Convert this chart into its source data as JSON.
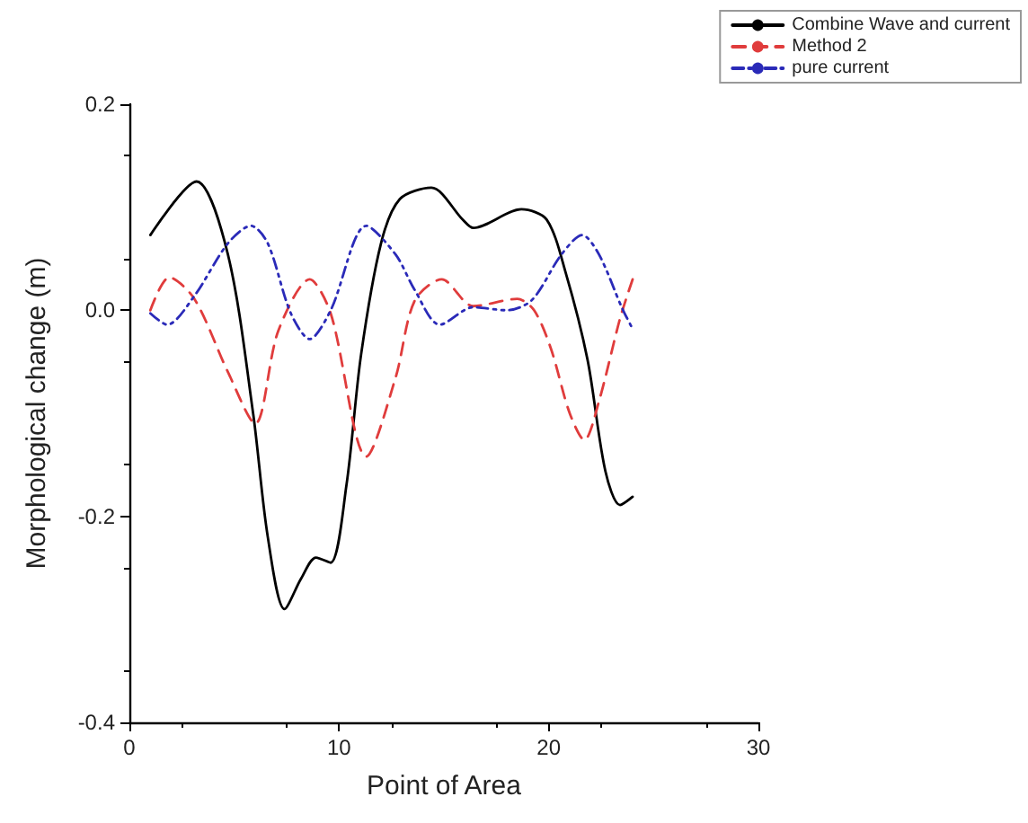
{
  "chart_data": {
    "type": "line",
    "xlabel": "Point of Area",
    "ylabel": "Morphological change (m)",
    "xlim": [
      0,
      30
    ],
    "xticks": [
      0,
      10,
      20,
      30
    ],
    "ylim": [
      -0.4,
      0.2
    ],
    "yticks": [
      {
        "value": -0.4,
        "label": "-0.4"
      },
      {
        "value": -0.2,
        "label": "-0.2"
      },
      {
        "value": 0,
        "label": "0.0"
      },
      {
        "value": 0.2,
        "label": "0.2"
      }
    ],
    "grid": false,
    "legend": "top right",
    "marker": "none",
    "series": [
      {
        "name": "Combine Wave and current",
        "color": "#000000",
        "line_style": "solid",
        "x": [
          1,
          3.2,
          4.7,
          5.9,
          6.6,
          7.4,
          8.2,
          8.9,
          9.6,
          10.35,
          11.05,
          12,
          12.9,
          14.4,
          15.9,
          16.4,
          18.7,
          19.9,
          20.8,
          21.85,
          22.7,
          23.4,
          24
        ],
        "values": [
          0.073,
          0.125,
          0.054,
          -0.1,
          -0.22,
          -0.29,
          -0.26,
          -0.24,
          -0.245,
          -0.17,
          -0.043,
          0.065,
          0.108,
          0.119,
          0.088,
          0.08,
          0.098,
          0.088,
          0.037,
          -0.048,
          -0.156,
          -0.189,
          -0.181
        ]
      },
      {
        "name": "Method 2",
        "color": "#e03c3c",
        "line_style": "dashed",
        "x": [
          1,
          1.9,
          3.1,
          4.7,
          6.0,
          7.1,
          8.6,
          9.6,
          11.3,
          12.7,
          13.6,
          14.9,
          16.4,
          18.5,
          19.3,
          20.1,
          21,
          21.7,
          22.4,
          23.4,
          24
        ],
        "values": [
          0,
          0.032,
          0.011,
          -0.06,
          -0.11,
          -0.02,
          0.03,
          -0.003,
          -0.142,
          -0.065,
          0.009,
          0.03,
          0.004,
          0.011,
          0,
          -0.037,
          -0.1,
          -0.126,
          -0.088,
          -0.008,
          0.03
        ]
      },
      {
        "name": "pure current",
        "color": "#2a2ab8",
        "line_style": "dotted",
        "x": [
          1,
          1.8,
          3.1,
          4.7,
          5.8,
          6.6,
          7.7,
          8.6,
          9.6,
          11.3,
          12.7,
          13.6,
          14.8,
          16.4,
          18.0,
          19.2,
          20.6,
          21.6,
          22.4,
          23.5,
          24
        ],
        "values": [
          -0.003,
          -0.014,
          0.014,
          0.065,
          0.082,
          0.065,
          -0.003,
          -0.028,
          0,
          0.082,
          0.054,
          0.02,
          -0.014,
          0.003,
          0,
          0.01,
          0.054,
          0.073,
          0.054,
          0.002,
          -0.018
        ]
      }
    ]
  }
}
